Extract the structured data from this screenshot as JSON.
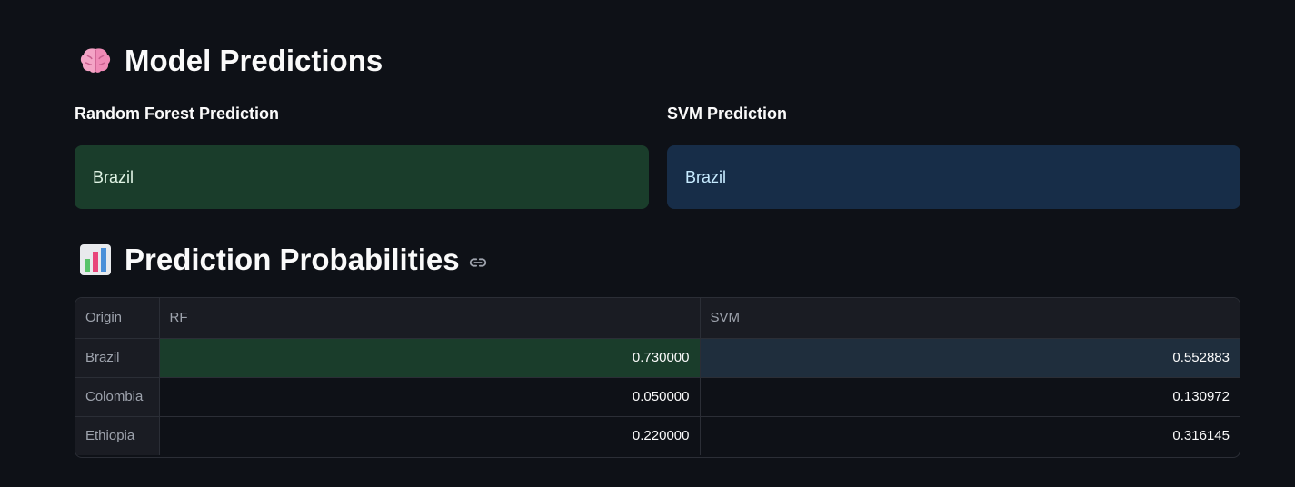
{
  "headings": {
    "model_predictions": "Model Predictions",
    "prediction_probabilities": "Prediction Probabilities"
  },
  "icons": {
    "model_predictions": "brain-icon",
    "prediction_probabilities": "bar-chart-icon",
    "anchor": "link-icon"
  },
  "predictions": {
    "rf": {
      "label": "Random Forest Prediction",
      "value": "Brazil",
      "color": "#1a3d2b"
    },
    "svm": {
      "label": "SVM Prediction",
      "value": "Brazil",
      "color": "#172d48"
    }
  },
  "table": {
    "columns": [
      "Origin",
      "RF",
      "SVM"
    ],
    "rows": [
      {
        "origin": "Brazil",
        "rf": "0.730000",
        "svm": "0.552883",
        "highlight": true
      },
      {
        "origin": "Colombia",
        "rf": "0.050000",
        "svm": "0.130972",
        "highlight": false
      },
      {
        "origin": "Ethiopia",
        "rf": "0.220000",
        "svm": "0.316145",
        "highlight": false
      }
    ]
  },
  "colors": {
    "background": "#0e1117",
    "success": "#1a3d2b",
    "info": "#172d48"
  }
}
